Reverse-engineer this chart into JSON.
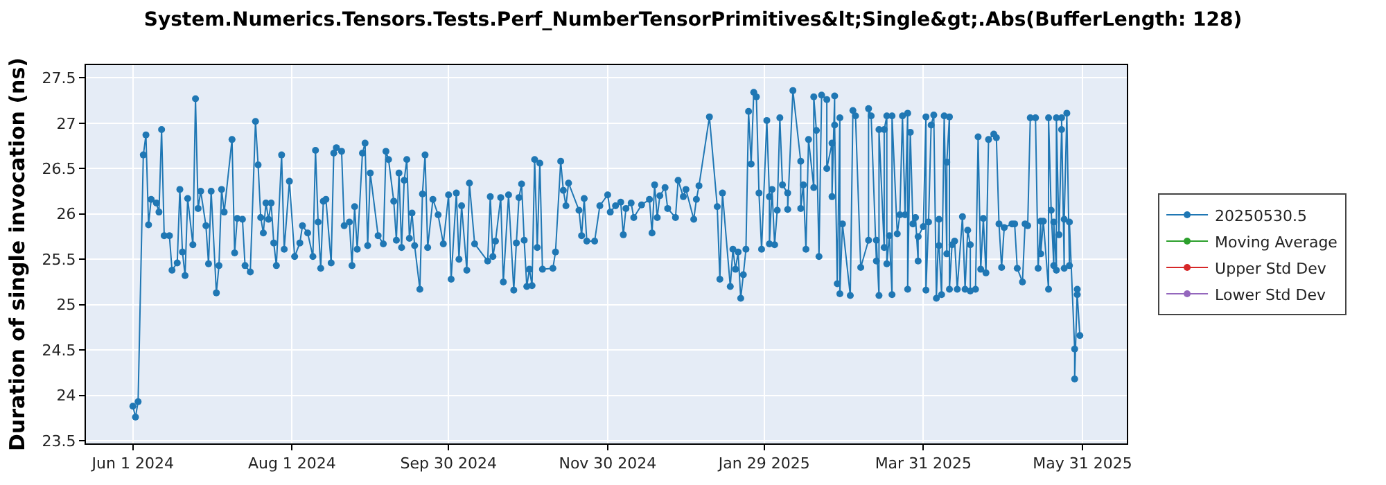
{
  "chart_data": {
    "type": "line",
    "title": "System.Numerics.Tensors.Tests.Perf_NumberTensorPrimitives&lt;Single&gt;.Abs(BufferLength: 128)",
    "ylabel": "Duration of single invocation (ns)",
    "xlim": [
      "2024-05-14",
      "2025-06-17"
    ],
    "ylim": [
      23.47,
      27.64
    ],
    "xticks": [
      {
        "value": "2024-06-01",
        "label": "Jun 1 2024"
      },
      {
        "value": "2024-08-01",
        "label": "Aug 1 2024"
      },
      {
        "value": "2024-09-30",
        "label": "Sep 30 2024"
      },
      {
        "value": "2024-11-30",
        "label": "Nov 30 2024"
      },
      {
        "value": "2025-01-29",
        "label": "Jan 29 2025"
      },
      {
        "value": "2025-03-31",
        "label": "Mar 31 2025"
      },
      {
        "value": "2025-05-31",
        "label": "May 31 2025"
      }
    ],
    "yticks": [
      23.5,
      24,
      24.5,
      25,
      25.5,
      26,
      26.5,
      27,
      27.5
    ],
    "grid": true,
    "legend": "right",
    "marker": "circle",
    "line_style": "solid",
    "series": [
      {
        "name": "20250530.5",
        "color": "#1f77b4",
        "x": [
          "2024-06-01",
          "2024-06-02",
          "2024-06-03",
          "2024-06-05",
          "2024-06-06",
          "2024-06-07",
          "2024-06-08",
          "2024-06-10",
          "2024-06-11",
          "2024-06-12",
          "2024-06-13",
          "2024-06-15",
          "2024-06-16",
          "2024-06-18",
          "2024-06-19",
          "2024-06-20",
          "2024-06-21",
          "2024-06-22",
          "2024-06-24",
          "2024-06-25",
          "2024-06-26",
          "2024-06-27",
          "2024-06-29",
          "2024-06-30",
          "2024-07-01",
          "2024-07-03",
          "2024-07-04",
          "2024-07-05",
          "2024-07-06",
          "2024-07-09",
          "2024-07-10",
          "2024-07-11",
          "2024-07-13",
          "2024-07-14",
          "2024-07-16",
          "2024-07-18",
          "2024-07-19",
          "2024-07-20",
          "2024-07-21",
          "2024-07-22",
          "2024-07-23",
          "2024-07-24",
          "2024-07-25",
          "2024-07-26",
          "2024-07-28",
          "2024-07-29",
          "2024-07-31",
          "2024-08-02",
          "2024-08-04",
          "2024-08-05",
          "2024-08-07",
          "2024-08-09",
          "2024-08-10",
          "2024-08-11",
          "2024-08-12",
          "2024-08-13",
          "2024-08-14",
          "2024-08-16",
          "2024-08-17",
          "2024-08-18",
          "2024-08-20",
          "2024-08-21",
          "2024-08-23",
          "2024-08-24",
          "2024-08-25",
          "2024-08-26",
          "2024-08-28",
          "2024-08-29",
          "2024-08-30",
          "2024-08-31",
          "2024-09-03",
          "2024-09-05",
          "2024-09-06",
          "2024-09-07",
          "2024-09-09",
          "2024-09-10",
          "2024-09-11",
          "2024-09-12",
          "2024-09-13",
          "2024-09-14",
          "2024-09-15",
          "2024-09-16",
          "2024-09-17",
          "2024-09-19",
          "2024-09-20",
          "2024-09-21",
          "2024-09-22",
          "2024-09-24",
          "2024-09-26",
          "2024-09-28",
          "2024-09-30",
          "2024-10-01",
          "2024-10-03",
          "2024-10-04",
          "2024-10-05",
          "2024-10-07",
          "2024-10-08",
          "2024-10-10",
          "2024-10-15",
          "2024-10-16",
          "2024-10-17",
          "2024-10-18",
          "2024-10-20",
          "2024-10-21",
          "2024-10-23",
          "2024-10-25",
          "2024-10-26",
          "2024-10-27",
          "2024-10-28",
          "2024-10-29",
          "2024-10-30",
          "2024-10-31",
          "2024-11-01",
          "2024-11-02",
          "2024-11-03",
          "2024-11-04",
          "2024-11-05",
          "2024-11-09",
          "2024-11-10",
          "2024-11-12",
          "2024-11-13",
          "2024-11-14",
          "2024-11-15",
          "2024-11-19",
          "2024-11-20",
          "2024-11-21",
          "2024-11-22",
          "2024-11-25",
          "2024-11-27",
          "2024-11-30",
          "2024-12-01",
          "2024-12-03",
          "2024-12-05",
          "2024-12-06",
          "2024-12-07",
          "2024-12-09",
          "2024-12-10",
          "2024-12-13",
          "2024-12-16",
          "2024-12-17",
          "2024-12-18",
          "2024-12-19",
          "2024-12-20",
          "2024-12-22",
          "2024-12-23",
          "2024-12-26",
          "2024-12-27",
          "2024-12-29",
          "2024-12-30",
          "2025-01-02",
          "2025-01-03",
          "2025-01-04",
          "2025-01-08",
          "2025-01-11",
          "2025-01-12",
          "2025-01-13",
          "2025-01-16",
          "2025-01-17",
          "2025-01-18",
          "2025-01-19",
          "2025-01-20",
          "2025-01-21",
          "2025-01-22",
          "2025-01-23",
          "2025-01-24",
          "2025-01-25",
          "2025-01-26",
          "2025-01-27",
          "2025-01-28",
          "2025-01-30",
          "2025-01-31",
          "2025-01-31",
          "2025-02-01",
          "2025-02-02",
          "2025-02-03",
          "2025-02-04",
          "2025-02-05",
          "2025-02-07",
          "2025-02-07",
          "2025-02-09",
          "2025-02-12",
          "2025-02-12",
          "2025-02-13",
          "2025-02-14",
          "2025-02-15",
          "2025-02-17",
          "2025-02-17",
          "2025-02-18",
          "2025-02-19",
          "2025-02-20",
          "2025-02-22",
          "2025-02-22",
          "2025-02-24",
          "2025-02-24",
          "2025-02-25",
          "2025-02-25",
          "2025-02-26",
          "2025-02-27",
          "2025-02-27",
          "2025-02-28",
          "2025-03-03",
          "2025-03-04",
          "2025-03-05",
          "2025-03-07",
          "2025-03-10",
          "2025-03-10",
          "2025-03-11",
          "2025-03-13",
          "2025-03-13",
          "2025-03-14",
          "2025-03-14",
          "2025-03-16",
          "2025-03-16",
          "2025-03-17",
          "2025-03-17",
          "2025-03-18",
          "2025-03-19",
          "2025-03-19",
          "2025-03-21",
          "2025-03-22",
          "2025-03-23",
          "2025-03-24",
          "2025-03-25",
          "2025-03-25",
          "2025-03-26",
          "2025-03-27",
          "2025-03-28",
          "2025-03-29",
          "2025-03-29",
          "2025-03-31",
          "2025-04-01",
          "2025-04-01",
          "2025-04-02",
          "2025-04-03",
          "2025-04-04",
          "2025-04-05",
          "2025-04-06",
          "2025-04-06",
          "2025-04-07",
          "2025-04-08",
          "2025-04-09",
          "2025-04-09",
          "2025-04-10",
          "2025-04-10",
          "2025-04-11",
          "2025-04-12",
          "2025-04-13",
          "2025-04-15",
          "2025-04-16",
          "2025-04-17",
          "2025-04-18",
          "2025-04-18",
          "2025-04-20",
          "2025-04-21",
          "2025-04-22",
          "2025-04-23",
          "2025-04-24",
          "2025-04-25",
          "2025-04-27",
          "2025-04-28",
          "2025-04-29",
          "2025-04-30",
          "2025-05-01",
          "2025-05-04",
          "2025-05-05",
          "2025-05-06",
          "2025-05-08",
          "2025-05-09",
          "2025-05-10",
          "2025-05-11",
          "2025-05-13",
          "2025-05-14",
          "2025-05-15",
          "2025-05-15",
          "2025-05-16",
          "2025-05-18",
          "2025-05-18",
          "2025-05-19",
          "2025-05-20",
          "2025-05-20",
          "2025-05-21",
          "2025-05-21",
          "2025-05-22",
          "2025-05-23",
          "2025-05-23",
          "2025-05-24",
          "2025-05-24",
          "2025-05-25",
          "2025-05-26",
          "2025-05-26",
          "2025-05-28",
          "2025-05-28",
          "2025-05-29",
          "2025-05-29",
          "2025-05-30"
        ],
        "values": [
          23.88,
          23.76,
          23.93,
          26.65,
          26.87,
          25.88,
          26.16,
          26.12,
          26.02,
          26.93,
          25.76,
          25.76,
          25.38,
          25.46,
          26.27,
          25.58,
          25.32,
          26.17,
          25.66,
          27.27,
          26.06,
          26.25,
          25.87,
          25.45,
          26.25,
          25.13,
          25.43,
          26.27,
          26.02,
          26.82,
          25.57,
          25.95,
          25.94,
          25.43,
          25.36,
          27.02,
          26.54,
          25.96,
          25.79,
          26.12,
          25.94,
          26.12,
          25.68,
          25.43,
          26.65,
          25.61,
          26.36,
          25.53,
          25.68,
          25.87,
          25.79,
          25.53,
          26.7,
          25.91,
          25.4,
          26.14,
          26.16,
          25.46,
          26.67,
          26.73,
          26.69,
          25.87,
          25.91,
          25.43,
          26.08,
          25.61,
          26.67,
          26.78,
          25.65,
          26.45,
          25.76,
          25.67,
          26.69,
          26.6,
          26.14,
          25.71,
          26.45,
          25.63,
          26.37,
          26.6,
          25.73,
          26.01,
          25.65,
          25.17,
          26.22,
          26.65,
          25.63,
          26.16,
          25.99,
          25.67,
          26.21,
          25.28,
          26.23,
          25.5,
          26.09,
          25.38,
          26.34,
          25.67,
          25.48,
          26.19,
          25.53,
          25.7,
          26.18,
          25.25,
          26.21,
          25.16,
          25.68,
          26.18,
          26.33,
          25.71,
          25.2,
          25.39,
          25.21,
          26.6,
          25.63,
          26.56,
          25.39,
          25.4,
          25.58,
          26.58,
          26.26,
          26.09,
          26.34,
          26.04,
          25.76,
          26.17,
          25.7,
          25.7,
          26.09,
          26.21,
          26.02,
          26.09,
          26.13,
          25.77,
          26.06,
          26.12,
          25.96,
          26.1,
          26.16,
          25.79,
          26.32,
          25.96,
          26.2,
          26.29,
          26.06,
          25.96,
          26.37,
          26.19,
          26.27,
          25.94,
          26.16,
          26.31,
          27.07,
          26.08,
          25.28,
          26.23,
          25.2,
          25.61,
          25.39,
          25.58,
          25.07,
          25.33,
          25.61,
          27.13,
          26.55,
          27.34,
          27.29,
          26.23,
          25.61,
          27.03,
          26.19,
          25.67,
          26.27,
          25.66,
          26.04,
          27.06,
          26.32,
          26.23,
          26.05,
          27.36,
          26.58,
          26.06,
          26.32,
          25.61,
          26.82,
          26.29,
          27.29,
          26.92,
          25.53,
          27.31,
          27.26,
          26.5,
          26.78,
          26.19,
          27.3,
          26.98,
          25.23,
          27.06,
          25.12,
          25.89,
          25.1,
          27.14,
          27.08,
          25.41,
          25.71,
          27.16,
          27.08,
          25.48,
          25.71,
          25.1,
          26.93,
          25.63,
          26.93,
          27.08,
          25.45,
          25.76,
          25.11,
          27.08,
          25.78,
          25.99,
          27.08,
          25.99,
          27.11,
          25.17,
          26.9,
          25.89,
          25.96,
          25.48,
          25.75,
          25.86,
          27.07,
          25.16,
          25.91,
          26.98,
          27.09,
          25.07,
          25.94,
          25.65,
          25.11,
          27.08,
          25.56,
          26.57,
          27.07,
          25.17,
          25.66,
          25.7,
          25.17,
          25.97,
          25.17,
          25.82,
          25.66,
          25.15,
          25.17,
          26.85,
          25.39,
          25.95,
          25.35,
          26.82,
          26.88,
          26.84,
          25.89,
          25.41,
          25.85,
          25.89,
          25.89,
          25.4,
          25.25,
          25.89,
          25.87,
          27.06,
          27.06,
          25.4,
          25.92,
          25.56,
          25.92,
          25.17,
          27.06,
          26.04,
          25.43,
          25.91,
          25.38,
          27.06,
          25.77,
          26.93,
          27.06,
          25.4,
          25.94,
          27.11,
          25.43,
          25.91,
          24.51,
          24.18,
          25.17,
          25.11,
          24.66
        ]
      },
      {
        "name": "Moving Average",
        "color": "#2ca02c"
      },
      {
        "name": "Upper Std Dev",
        "color": "#d62728"
      },
      {
        "name": "Lower Std Dev",
        "color": "#9467bd"
      }
    ]
  }
}
